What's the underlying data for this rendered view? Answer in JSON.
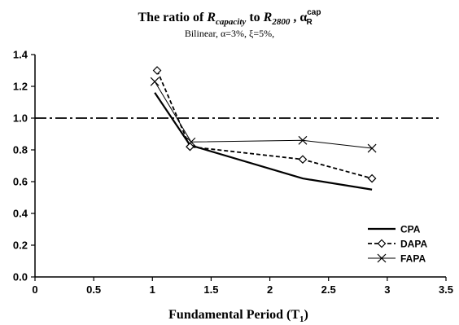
{
  "chart_data": {
    "type": "line",
    "title": {
      "prefix": "The ratio of ",
      "r1": "R",
      "r1_sub": "capacity",
      "mid": " to ",
      "r2": "R",
      "r2_sub": "2800",
      "sep": " , ",
      "alpha": "α",
      "alpha_sup": "cap",
      "alpha_sub": "R"
    },
    "subtitle": "Bilinear, α=3%, ξ=5%,",
    "xlabel": {
      "text": "Fundamental Period (T",
      "sub": "1",
      "close": ")"
    },
    "ylabel": "",
    "xlim": [
      0,
      3.5
    ],
    "ylim": [
      0,
      1.4
    ],
    "xticks": [
      "0",
      "0.5",
      "1",
      "1.5",
      "2",
      "2.5",
      "3",
      "3.5"
    ],
    "yticks": [
      "0.0",
      "0.2",
      "0.4",
      "0.6",
      "0.8",
      "1.0",
      "1.2",
      "1.4"
    ],
    "grid": false,
    "legend_position": "bottom-right",
    "reference_line": {
      "y": 1.0,
      "style": "dash-dot"
    },
    "series": [
      {
        "name": "CPA",
        "style": "solid-thick",
        "marker": "none",
        "x": [
          1.02,
          1.32,
          2.28,
          2.87
        ],
        "y": [
          1.16,
          0.83,
          0.62,
          0.55
        ]
      },
      {
        "name": "DAPA",
        "style": "dashed",
        "marker": "diamond",
        "x": [
          1.04,
          1.32,
          2.28,
          2.87
        ],
        "y": [
          1.3,
          0.82,
          0.74,
          0.62
        ]
      },
      {
        "name": "FAPA",
        "style": "solid-thin",
        "marker": "x",
        "x": [
          1.02,
          1.33,
          2.28,
          2.87
        ],
        "y": [
          1.23,
          0.85,
          0.86,
          0.81
        ]
      }
    ]
  }
}
